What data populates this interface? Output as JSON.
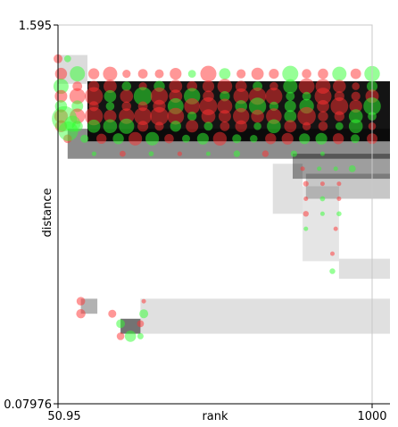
{
  "chart_data": {
    "type": "scatter",
    "title": "",
    "xlabel": "rank",
    "ylabel": "distance",
    "xlim": [
      50.95,
      1000
    ],
    "ylim": [
      0.07976,
      1.595
    ],
    "x_tick_labels": [
      "50.95",
      "1000"
    ],
    "y_tick_labels": [
      "1.595",
      "0.07976"
    ],
    "grid": false,
    "legend": "none",
    "colors": {
      "red": "#ff3030",
      "green": "#30ff30",
      "shade": "#000000"
    },
    "bands": [
      {
        "x0": 50.95,
        "x1": 140,
        "y0": 1.36,
        "y1": 1.475,
        "gray": 0.14
      },
      {
        "x0": 140,
        "x1": 1000,
        "y0": 1.13,
        "y1": 1.37,
        "gray": 0.92
      },
      {
        "x0": 80,
        "x1": 1000,
        "y0": 1.06,
        "y1": 1.18,
        "gray": 0.45
      },
      {
        "x0": 760,
        "x1": 1000,
        "y0": 0.98,
        "y1": 1.08,
        "gray": 0.38
      },
      {
        "x0": 800,
        "x1": 1000,
        "y0": 0.9,
        "y1": 1.0,
        "gray": 0.22
      },
      {
        "x0": 700,
        "x1": 790,
        "y0": 0.84,
        "y1": 1.04,
        "gray": 0.12
      },
      {
        "x0": 790,
        "x1": 900,
        "y0": 0.65,
        "y1": 0.95,
        "gray": 0.1
      },
      {
        "x0": 900,
        "x1": 1000,
        "y0": 0.58,
        "y1": 0.66,
        "gray": 0.12
      },
      {
        "x0": 120,
        "x1": 170,
        "y0": 0.44,
        "y1": 0.5,
        "gray": 0.3
      },
      {
        "x0": 240,
        "x1": 300,
        "y0": 0.36,
        "y1": 0.42,
        "gray": 0.55
      },
      {
        "x0": 300,
        "x1": 1000,
        "y0": 0.36,
        "y1": 0.5,
        "gray": 0.12
      }
    ],
    "rows": [
      {
        "y": 1.46,
        "x0": 50.95,
        "x1": 80,
        "n": 2,
        "r": 5,
        "mix": 0.15
      },
      {
        "y": 1.4,
        "x0": 60,
        "x1": 1000,
        "n": 20,
        "r": 7,
        "mix": 0.25
      },
      {
        "y": 1.35,
        "x0": 60,
        "x1": 1000,
        "n": 20,
        "r": 7,
        "mix": 0.35
      },
      {
        "y": 1.31,
        "x0": 60,
        "x1": 1000,
        "n": 20,
        "r": 8,
        "mix": 0.2
      },
      {
        "y": 1.27,
        "x0": 60,
        "x1": 1000,
        "n": 20,
        "r": 8,
        "mix": 0.3
      },
      {
        "y": 1.23,
        "x0": 60,
        "x1": 1000,
        "n": 20,
        "r": 8,
        "mix": 0.45
      },
      {
        "y": 1.19,
        "x0": 60,
        "x1": 1000,
        "n": 20,
        "r": 7,
        "mix": 0.4
      },
      {
        "y": 1.14,
        "x0": 80,
        "x1": 1000,
        "n": 19,
        "r": 6,
        "mix": 0.5
      },
      {
        "y": 1.08,
        "x0": 160,
        "x1": 850,
        "n": 9,
        "r": 3,
        "mix": 0.6
      },
      {
        "y": 1.02,
        "x0": 790,
        "x1": 940,
        "n": 4,
        "r": 3,
        "mix": 0.4
      },
      {
        "y": 0.96,
        "x0": 800,
        "x1": 900,
        "n": 3,
        "r": 3,
        "mix": 0.4
      },
      {
        "y": 0.9,
        "x0": 800,
        "x1": 900,
        "n": 3,
        "r": 3,
        "mix": 0.3
      },
      {
        "y": 0.84,
        "x0": 800,
        "x1": 900,
        "n": 3,
        "r": 3,
        "mix": 0.5
      },
      {
        "y": 0.78,
        "x0": 800,
        "x1": 890,
        "n": 2,
        "r": 3,
        "mix": 0.5
      },
      {
        "y": 0.68,
        "x0": 880,
        "x1": 880,
        "n": 1,
        "r": 3,
        "mix": 0.0
      },
      {
        "y": 0.61,
        "x0": 880,
        "x1": 880,
        "n": 1,
        "r": 3,
        "mix": 1.0
      },
      {
        "y": 0.49,
        "x0": 120,
        "x1": 310,
        "n": 2,
        "r": 4,
        "mix": 0.0
      },
      {
        "y": 0.44,
        "x0": 120,
        "x1": 310,
        "n": 3,
        "r": 4,
        "mix": 0.6
      },
      {
        "y": 0.4,
        "x0": 240,
        "x1": 300,
        "n": 2,
        "r": 6,
        "mix": 0.3
      },
      {
        "y": 0.35,
        "x0": 240,
        "x1": 300,
        "n": 3,
        "r": 5,
        "mix": 0.6
      }
    ]
  }
}
